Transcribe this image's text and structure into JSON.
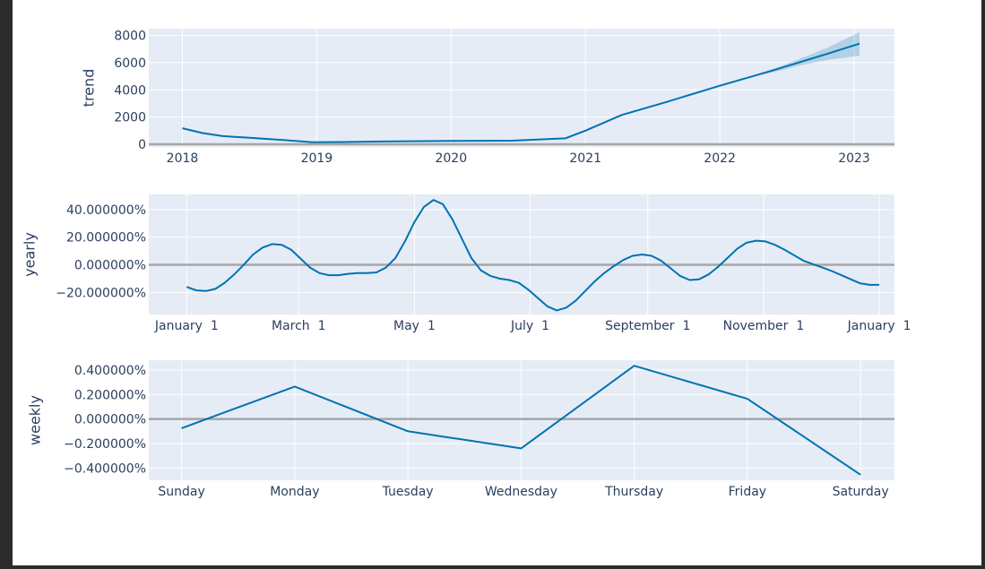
{
  "style": {
    "plot_bg": "#e5ecf6",
    "grid": "#ffffff",
    "zero_line": "#a6a6a6",
    "line": "#0072b2",
    "band": "rgba(0,114,178,0.22)",
    "text": "#2a3f5f",
    "page_bg": "#ffffff",
    "frame_bg": "#2b2b2b"
  },
  "chart_data": [
    {
      "id": "trend",
      "type": "line",
      "ylabel": "trend",
      "xlabel": "",
      "title": "",
      "x_tick_labels": [
        "2018",
        "2019",
        "2020",
        "2021",
        "2022",
        "2023"
      ],
      "x_ticks": [
        2018,
        2019,
        2020,
        2021,
        2022,
        2023
      ],
      "y_tick_labels": [
        "0",
        "2000",
        "4000",
        "6000",
        "8000"
      ],
      "y_ticks": [
        0,
        2000,
        4000,
        6000,
        8000
      ],
      "xlim": [
        2017.75,
        2023.3
      ],
      "ylim": [
        -200,
        8500
      ],
      "series": [
        {
          "x": [
            2018.0,
            2018.15,
            2018.3,
            2018.5,
            2018.75,
            2018.97,
            2019.2,
            2019.5,
            2020.0,
            2020.45,
            2020.85,
            2021.0,
            2021.27,
            2021.6,
            2022.0,
            2022.4,
            2022.8,
            2023.04
          ],
          "y": [
            1180,
            820,
            600,
            480,
            310,
            140,
            160,
            200,
            240,
            260,
            430,
            1000,
            2150,
            3100,
            4300,
            5450,
            6650,
            7400
          ]
        }
      ],
      "band": {
        "x": [
          2022.2,
          2022.4,
          2022.6,
          2022.8,
          2023.04
        ],
        "lower": [
          4840,
          5300,
          5800,
          6200,
          6500
        ],
        "upper": [
          4900,
          5550,
          6300,
          7100,
          8250
        ]
      }
    },
    {
      "id": "yearly",
      "type": "line",
      "ylabel": "yearly",
      "xlabel": "",
      "title": "",
      "x_tick_labels": [
        "January  1",
        "March  1",
        "May  1",
        "July  1",
        "September  1",
        "November  1",
        "January  1"
      ],
      "x_ticks": [
        0,
        59,
        120,
        181,
        243,
        304,
        365
      ],
      "y_tick_labels": [
        "−20.000000%",
        "0.000000%",
        "20.000000%",
        "40.000000%"
      ],
      "y_ticks": [
        -20,
        0,
        20,
        40
      ],
      "xlim": [
        -20,
        373
      ],
      "ylim": [
        -36,
        51
      ],
      "series": [
        {
          "x": [
            0,
            5,
            10,
            15,
            20,
            25,
            30,
            35,
            40,
            45,
            50,
            55,
            60,
            65,
            70,
            75,
            80,
            85,
            90,
            95,
            100,
            105,
            110,
            115,
            120,
            125,
            130,
            135,
            140,
            145,
            150,
            155,
            160,
            165,
            170,
            175,
            180,
            185,
            190,
            195,
            200,
            205,
            210,
            215,
            220,
            225,
            230,
            235,
            240,
            245,
            250,
            255,
            260,
            265,
            270,
            275,
            280,
            285,
            290,
            295,
            300,
            305,
            310,
            315,
            320,
            325,
            330,
            335,
            340,
            345,
            350,
            355,
            360,
            365
          ],
          "y": [
            -16,
            -18.5,
            -19,
            -17.5,
            -13,
            -7,
            0,
            7.5,
            12.5,
            15,
            14.5,
            11,
            4.5,
            -2,
            -6,
            -7.5,
            -7.5,
            -6.5,
            -6,
            -6,
            -5.5,
            -2,
            5,
            17,
            31,
            42,
            47,
            44,
            33,
            19,
            5,
            -4,
            -8,
            -10,
            -11,
            -13,
            -18,
            -24,
            -30,
            -33,
            -31,
            -26,
            -19,
            -12,
            -6,
            -1,
            3.5,
            6.5,
            7.5,
            6.5,
            3,
            -2.5,
            -8,
            -11,
            -10.5,
            -7,
            -1.5,
            5,
            11.5,
            16,
            17.5,
            17,
            14.5,
            11,
            7,
            3,
            0.5,
            -2,
            -4.5,
            -7.5,
            -10.5,
            -13.5,
            -14.5,
            -14.5
          ]
        }
      ]
    },
    {
      "id": "weekly",
      "type": "line",
      "ylabel": "weekly",
      "xlabel": "",
      "title": "",
      "x_tick_labels": [
        "Sunday",
        "Monday",
        "Tuesday",
        "Wednesday",
        "Thursday",
        "Friday",
        "Saturday"
      ],
      "x_ticks": [
        0,
        1,
        2,
        3,
        4,
        5,
        6
      ],
      "y_tick_labels": [
        "−0.400000%",
        "−0.200000%",
        "0.000000%",
        "0.200000%",
        "0.400000%"
      ],
      "y_ticks": [
        -0.4,
        -0.2,
        0,
        0.2,
        0.4
      ],
      "xlim": [
        -0.29,
        6.3
      ],
      "ylim": [
        -0.5,
        0.48
      ],
      "series": [
        {
          "x": [
            0,
            1,
            2,
            3,
            4,
            5,
            6
          ],
          "y": [
            -0.075,
            0.265,
            -0.1,
            -0.24,
            0.435,
            0.165,
            -0.455
          ]
        }
      ]
    }
  ]
}
